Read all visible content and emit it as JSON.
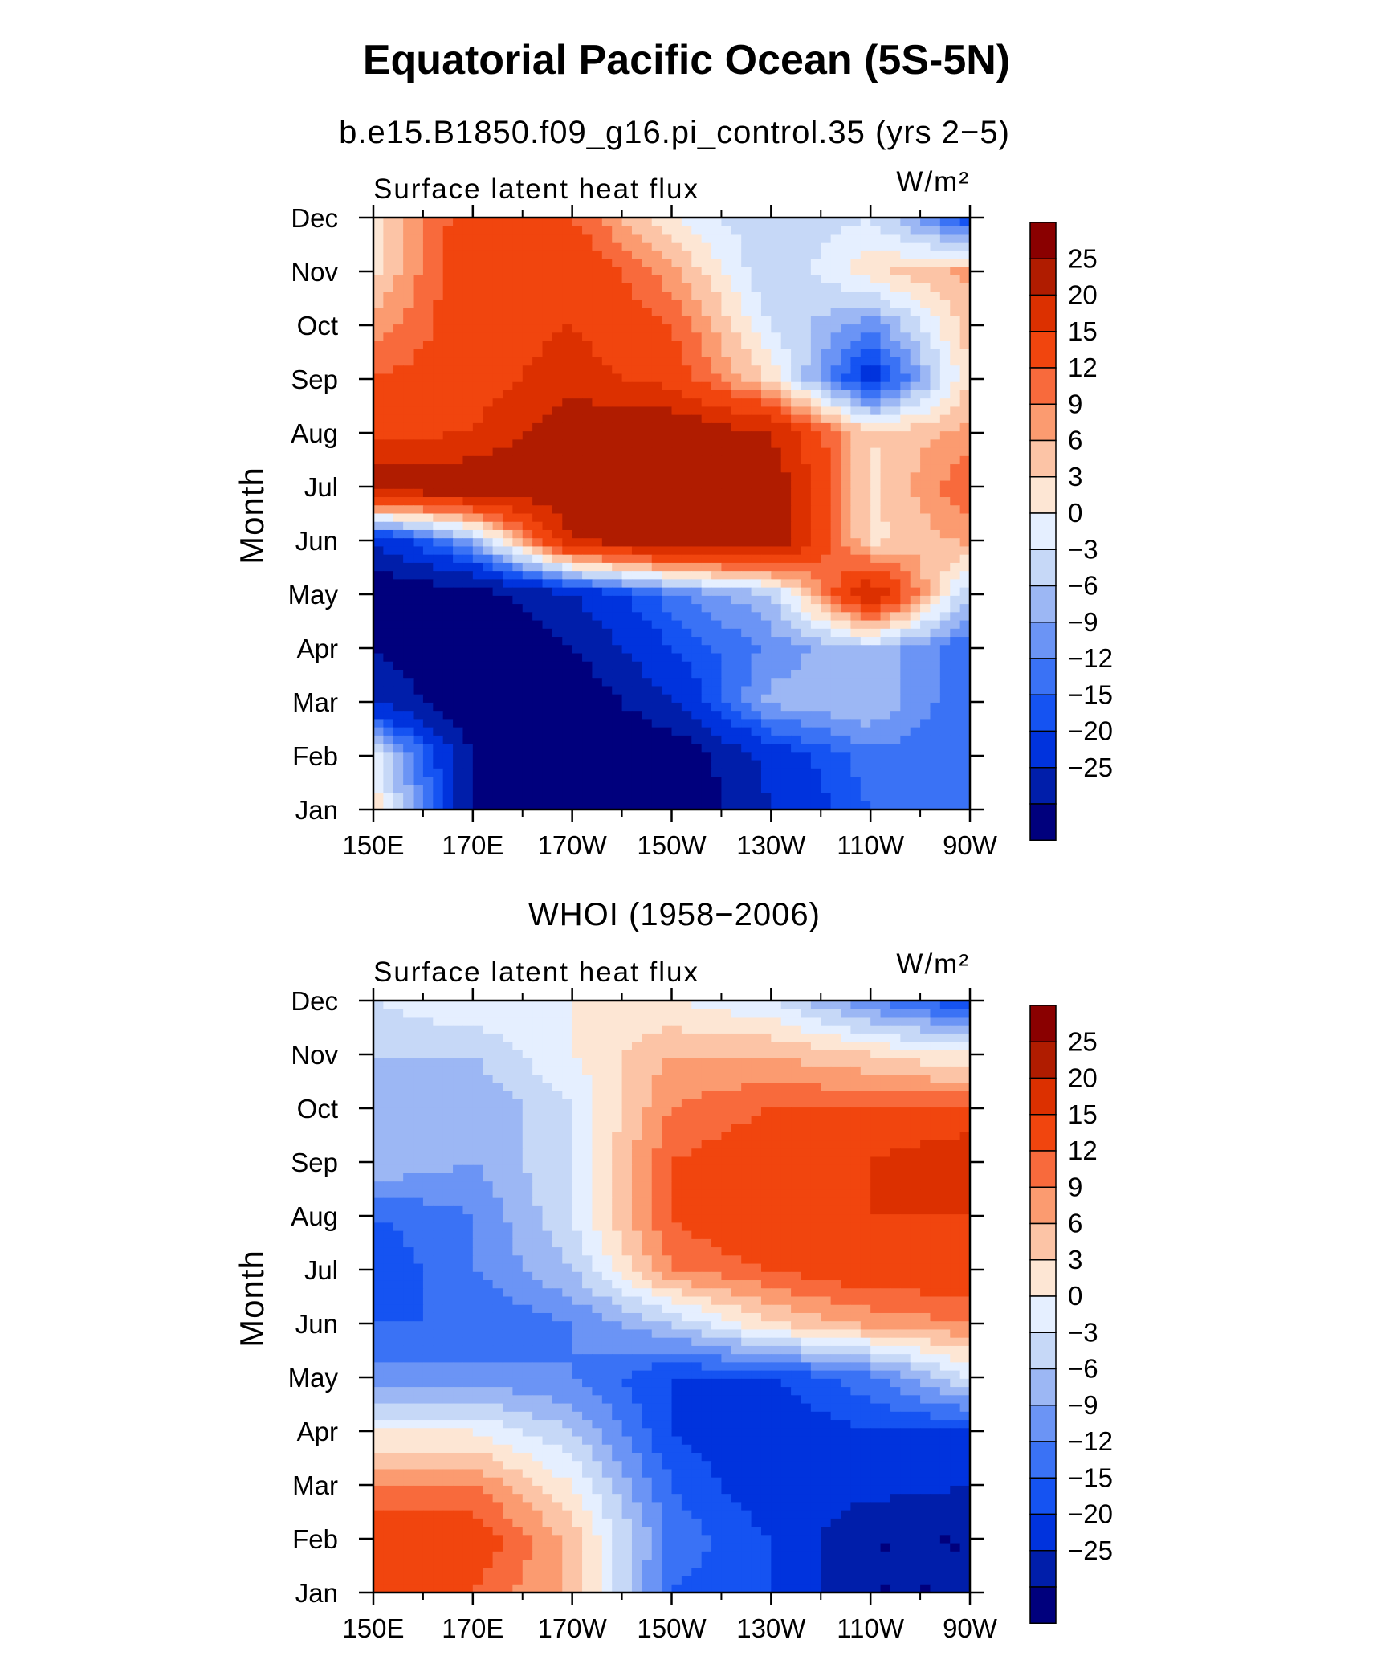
{
  "title": "Equatorial Pacific Ocean (5S-5N)",
  "chart_data": [
    {
      "type": "heatmap",
      "subtitle": "b.e15.B1850.f09_g16.pi_control.35 (yrs 2−5)",
      "left_label": "Surface latent heat flux",
      "right_label": "W/m²",
      "ylabel": "Month",
      "xlabel": "",
      "x": [
        "150E",
        "170E",
        "170W",
        "150W",
        "130W",
        "110W",
        "90W"
      ],
      "y": [
        "Jan",
        "Feb",
        "Mar",
        "Apr",
        "May",
        "Jun",
        "Jul",
        "Aug",
        "Sep",
        "Oct",
        "Nov",
        "Dec"
      ],
      "z": [
        [
          5,
          -25,
          -30,
          -30,
          -20,
          -12,
          -12
        ],
        [
          3,
          -25,
          -30,
          -30,
          -18,
          -10,
          -12
        ],
        [
          -20,
          -30,
          -30,
          -20,
          -5,
          -3,
          -12
        ],
        [
          -25,
          -30,
          -25,
          -15,
          -8,
          -3,
          -12
        ],
        [
          -30,
          -28,
          -20,
          -10,
          -3,
          25,
          -3
        ],
        [
          -20,
          -5,
          25,
          30,
          30,
          5,
          10
        ],
        [
          30,
          30,
          30,
          30,
          30,
          5,
          15
        ],
        [
          18,
          20,
          30,
          30,
          25,
          6,
          10
        ],
        [
          15,
          18,
          22,
          18,
          5,
          -18,
          6
        ],
        [
          10,
          18,
          20,
          15,
          0,
          -8,
          8
        ],
        [
          5,
          20,
          20,
          10,
          -3,
          5,
          10
        ],
        [
          5,
          18,
          15,
          3,
          -3,
          0,
          -15
        ]
      ]
    },
    {
      "type": "heatmap",
      "subtitle": "WHOI (1958−2006)",
      "left_label": "Surface latent heat flux",
      "right_label": "W/m²",
      "ylabel": "Month",
      "xlabel": "",
      "x": [
        "150E",
        "170E",
        "170W",
        "150W",
        "130W",
        "110W",
        "90W"
      ],
      "y": [
        "Jan",
        "Feb",
        "Mar",
        "Apr",
        "May",
        "Jun",
        "Jul",
        "Aug",
        "Sep",
        "Oct",
        "Nov",
        "Dec"
      ],
      "z": [
        [
          15,
          15,
          8,
          -12,
          -15,
          -25,
          -25
        ],
        [
          18,
          18,
          8,
          -10,
          -15,
          -25,
          -25
        ],
        [
          12,
          12,
          3,
          -12,
          -18,
          -18,
          -20
        ],
        [
          3,
          3,
          -3,
          -15,
          -18,
          -15,
          -15
        ],
        [
          -8,
          -8,
          -9,
          -15,
          -15,
          -10,
          0
        ],
        [
          -12,
          -12,
          -9,
          -3,
          6,
          10,
          12
        ],
        [
          -15,
          -9,
          -3,
          12,
          15,
          18,
          18
        ],
        [
          -12,
          -9,
          0,
          15,
          20,
          20,
          20
        ],
        [
          -3,
          -6,
          0,
          15,
          18,
          20,
          25
        ],
        [
          -3,
          -6,
          0,
          12,
          15,
          15,
          15
        ],
        [
          -3,
          -3,
          3,
          9,
          9,
          6,
          3
        ],
        [
          0,
          3,
          3,
          3,
          0,
          -9,
          -15
        ]
      ]
    }
  ],
  "colorbar": {
    "labels": [
      "25",
      "20",
      "15",
      "12",
      "9",
      "6",
      "3",
      "0",
      "−3",
      "−6",
      "−9",
      "−12",
      "−15",
      "−20",
      "−25"
    ],
    "levels": [
      -25,
      -20,
      -15,
      -12,
      -9,
      -6,
      -3,
      0,
      3,
      6,
      9,
      12,
      15,
      20,
      25
    ],
    "colors": [
      "#00007d",
      "#001eaa",
      "#0033dd",
      "#1553f2",
      "#3a72f5",
      "#6b94f5",
      "#9cb7f4",
      "#c6d8f7",
      "#e5efff",
      "#fde6d4",
      "#fcc4a6",
      "#fb9b70",
      "#f86a3c",
      "#f1450e",
      "#dc3000",
      "#b01c00",
      "#8a0000"
    ]
  }
}
